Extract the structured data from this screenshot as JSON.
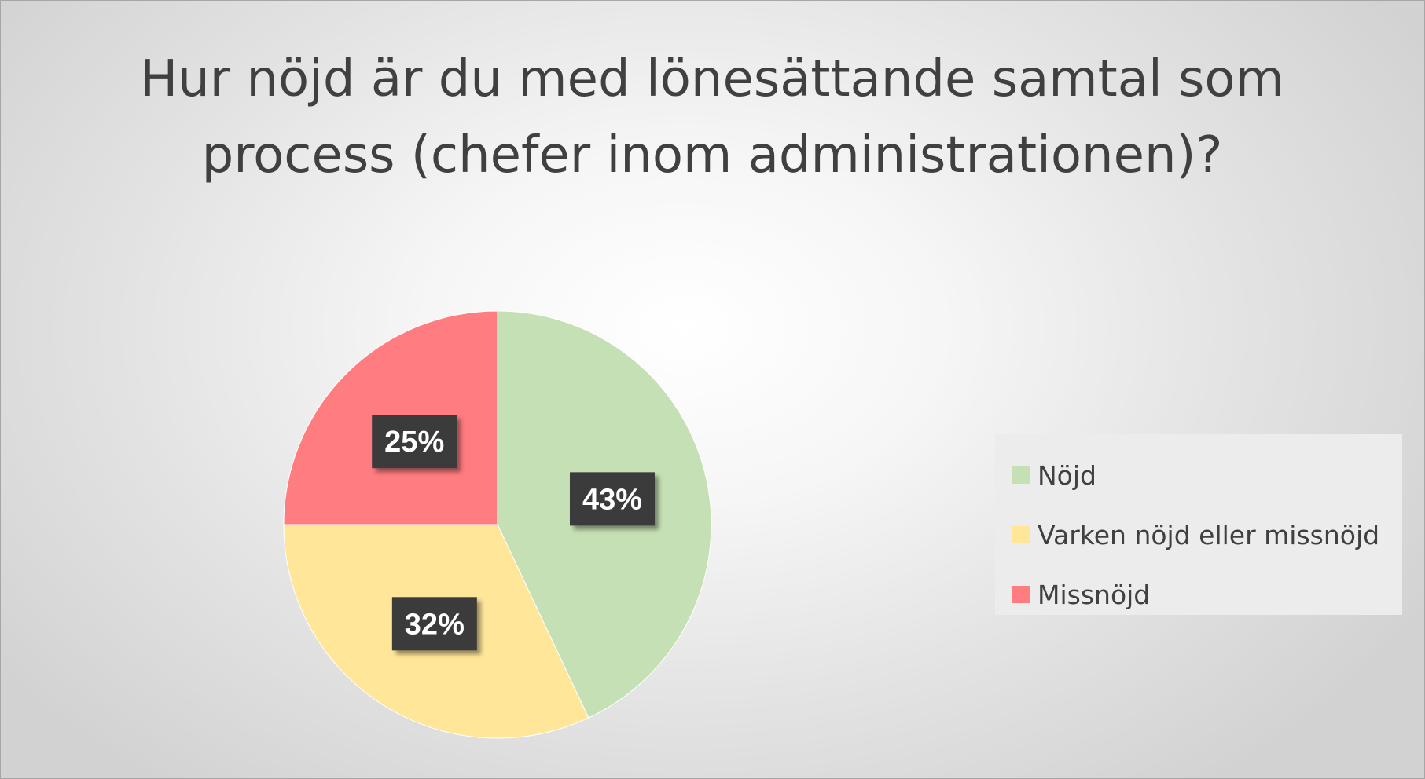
{
  "chart_data": {
    "type": "pie",
    "title": "Hur nöjd är du med lönesättande samtal som process (chefer inom administrationen)?",
    "categories": [
      "Nöjd",
      "Varken nöjd eller missnöjd",
      "Missnöjd"
    ],
    "values": [
      43,
      32,
      25
    ],
    "data_labels": [
      "43%",
      "32%",
      "25%"
    ],
    "colors": [
      "#c5e0b4",
      "#ffe699",
      "#ff7c80"
    ],
    "label_box_color": "#3a3a3a",
    "legend_position": "right",
    "start_angle": "12 o'clock",
    "direction": "clockwise"
  }
}
